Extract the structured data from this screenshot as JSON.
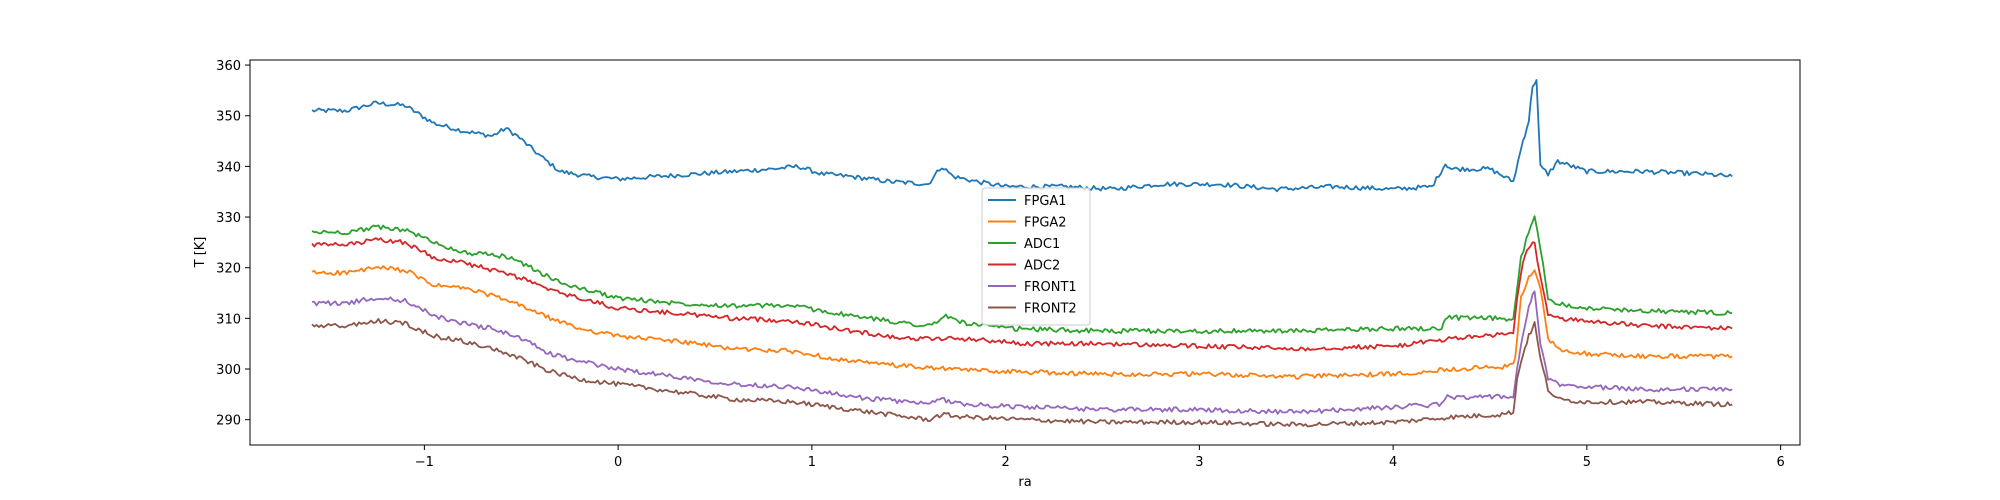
{
  "chart_data": {
    "type": "line",
    "title": "",
    "xlabel": "ra",
    "ylabel": "T [K]",
    "xlim": [
      -1.9,
      6.1
    ],
    "ylim": [
      285,
      361
    ],
    "xticks": [
      -1,
      0,
      1,
      2,
      3,
      4,
      5,
      6
    ],
    "yticks": [
      290,
      300,
      310,
      320,
      330,
      340,
      350,
      360
    ],
    "xtick_labels": [
      "−1",
      "0",
      "1",
      "2",
      "3",
      "4",
      "5",
      "6"
    ],
    "ytick_labels": [
      "290",
      "300",
      "310",
      "320",
      "330",
      "340",
      "350",
      "360"
    ],
    "grid": false,
    "legend_position": "center",
    "series": [
      {
        "name": "FPGA1",
        "color": "#1f77b4",
        "x": [
          -1.58,
          -1.4,
          -1.25,
          -1.1,
          -0.95,
          -0.8,
          -0.65,
          -0.58,
          -0.52,
          -0.4,
          -0.3,
          -0.15,
          0.0,
          0.2,
          0.4,
          0.6,
          0.8,
          0.93,
          1.05,
          1.2,
          1.4,
          1.6,
          1.67,
          1.73,
          1.85,
          2.0,
          2.3,
          2.55,
          2.8,
          3.1,
          3.4,
          3.7,
          4.0,
          4.2,
          4.27,
          4.3,
          4.5,
          4.62,
          4.67,
          4.7,
          4.72,
          4.74,
          4.76,
          4.8,
          4.85,
          5.0,
          5.3,
          5.6,
          5.75
        ],
        "y": [
          351,
          351,
          352.5,
          352,
          348.5,
          347,
          346,
          347.5,
          346,
          342,
          339,
          338,
          337.5,
          338,
          338.5,
          339,
          339.5,
          340,
          338.5,
          338,
          337,
          336.5,
          340,
          338,
          337,
          336,
          336,
          335.5,
          336.5,
          336.5,
          335.5,
          336,
          335.5,
          336,
          340.5,
          339.5,
          339.5,
          337,
          345,
          349,
          356,
          357,
          340,
          338.5,
          341,
          339,
          339,
          338.5,
          338
        ]
      },
      {
        "name": "FPGA2",
        "color": "#ff7f0e",
        "x": [
          -1.58,
          -1.4,
          -1.25,
          -1.1,
          -0.95,
          -0.8,
          -0.65,
          -0.5,
          -0.35,
          -0.2,
          0.0,
          0.3,
          0.6,
          0.9,
          1.2,
          1.5,
          1.7,
          2.0,
          2.5,
          3.0,
          3.5,
          4.0,
          4.3,
          4.6,
          4.63,
          4.66,
          4.7,
          4.73,
          4.76,
          4.8,
          4.85,
          5.0,
          5.3,
          5.75
        ],
        "y": [
          319,
          319,
          320,
          319.5,
          316.5,
          316,
          314.5,
          312.5,
          310,
          308,
          306.5,
          305.5,
          304,
          303.5,
          301.5,
          300.5,
          300,
          299.5,
          299,
          299,
          298.5,
          299,
          300,
          300.5,
          302,
          314,
          318,
          319.5,
          316,
          306,
          304,
          303,
          302.5,
          302.5
        ]
      },
      {
        "name": "ADC1",
        "color": "#2ca02c",
        "x": [
          -1.58,
          -1.4,
          -1.25,
          -1.1,
          -0.95,
          -0.8,
          -0.65,
          -0.55,
          -0.45,
          -0.3,
          -0.15,
          0.0,
          0.3,
          0.6,
          0.9,
          1.2,
          1.5,
          1.62,
          1.68,
          1.8,
          2.0,
          2.5,
          3.0,
          3.5,
          4.0,
          4.25,
          4.28,
          4.35,
          4.55,
          4.62,
          4.66,
          4.7,
          4.73,
          4.76,
          4.8,
          4.85,
          5.0,
          5.3,
          5.75
        ],
        "y": [
          327,
          327,
          328,
          327.5,
          325,
          323,
          322.5,
          322,
          320,
          317,
          315.5,
          314,
          313,
          312.5,
          312.5,
          310.5,
          309,
          308.5,
          310.5,
          309,
          308,
          307.5,
          307.5,
          307.5,
          308,
          308,
          310.5,
          310,
          310,
          309.5,
          322,
          327,
          330,
          324,
          314,
          313,
          312,
          311.5,
          311
        ]
      },
      {
        "name": "ADC2",
        "color": "#d62728",
        "x": [
          -1.58,
          -1.4,
          -1.25,
          -1.1,
          -0.95,
          -0.8,
          -0.65,
          -0.5,
          -0.35,
          -0.2,
          0.0,
          0.3,
          0.6,
          0.9,
          1.2,
          1.5,
          1.8,
          2.1,
          2.5,
          3.0,
          3.5,
          4.0,
          4.3,
          4.62,
          4.64,
          4.67,
          4.7,
          4.73,
          4.76,
          4.8,
          4.85,
          5.0,
          5.3,
          5.75
        ],
        "y": [
          324.5,
          324.5,
          325.5,
          325,
          322,
          321,
          319.5,
          318,
          315.5,
          314,
          312,
          311,
          310,
          309.5,
          307.5,
          306,
          306,
          305,
          305,
          304.5,
          304,
          304.5,
          306,
          307,
          314,
          321,
          324,
          325,
          318,
          311,
          310,
          309.5,
          308.5,
          308
        ]
      },
      {
        "name": "FRONT1",
        "color": "#9467bd",
        "x": [
          -1.58,
          -1.4,
          -1.25,
          -1.1,
          -0.95,
          -0.8,
          -0.65,
          -0.5,
          -0.35,
          -0.2,
          0.0,
          0.3,
          0.6,
          0.9,
          1.2,
          1.5,
          1.6,
          1.67,
          1.8,
          2.1,
          2.5,
          3.0,
          3.5,
          4.0,
          4.25,
          4.28,
          4.4,
          4.62,
          4.64,
          4.67,
          4.7,
          4.73,
          4.76,
          4.8,
          4.85,
          5.0,
          5.3,
          5.75
        ],
        "y": [
          313,
          313,
          314,
          313.5,
          310.5,
          309,
          308,
          306,
          303,
          301.5,
          300,
          298.5,
          297,
          296.5,
          294.5,
          293.5,
          293,
          294,
          293,
          292.5,
          292,
          292,
          291.5,
          292.5,
          293,
          294.5,
          294.5,
          294.5,
          300,
          307,
          312,
          315.5,
          305,
          298,
          297,
          296.5,
          296,
          296
        ]
      },
      {
        "name": "FRONT2",
        "color": "#8c564b",
        "x": [
          -1.58,
          -1.4,
          -1.25,
          -1.1,
          -0.95,
          -0.8,
          -0.65,
          -0.5,
          -0.35,
          -0.2,
          0.0,
          0.3,
          0.6,
          0.9,
          1.2,
          1.5,
          1.6,
          1.67,
          1.8,
          2.1,
          2.5,
          3.0,
          3.5,
          4.0,
          4.3,
          4.55,
          4.62,
          4.64,
          4.67,
          4.7,
          4.73,
          4.76,
          4.8,
          4.85,
          5.0,
          5.3,
          5.75
        ],
        "y": [
          308.5,
          308.5,
          309.5,
          309,
          306.5,
          305.5,
          304,
          302,
          299.5,
          298,
          297,
          295.5,
          294,
          293.5,
          292,
          290.5,
          290,
          291,
          290.5,
          290,
          289.5,
          289.5,
          289,
          289.5,
          290.5,
          291,
          291.5,
          298,
          303,
          306.5,
          309,
          302,
          296,
          294,
          293.5,
          293.5,
          293
        ]
      }
    ]
  }
}
